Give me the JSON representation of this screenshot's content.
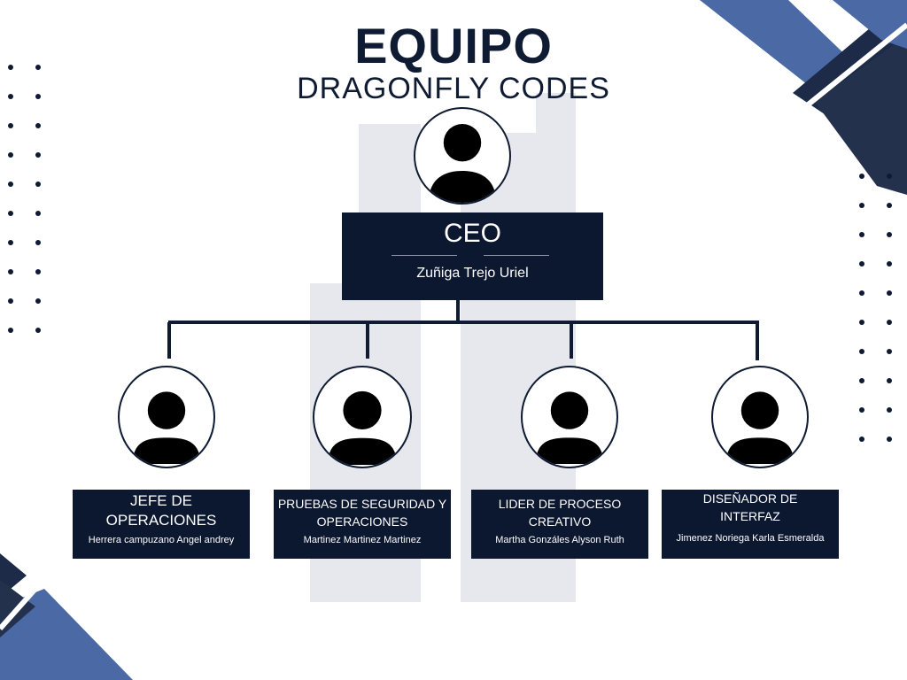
{
  "title": "EQUIPO",
  "subtitle": "DRAGONFLY CODES",
  "ceo": {
    "role": "CEO",
    "name": "Zuñiga Trejo Uriel"
  },
  "members": [
    {
      "role": "JEFE DE OPERACIONES",
      "name": "Herrera campuzano Angel andrey"
    },
    {
      "role": "PRUEBAS DE SEGURIDAD Y OPERACIONES",
      "name": "Martinez Martinez Martinez"
    },
    {
      "role": "LIDER DE PROCESO CREATIVO",
      "name": "Martha Gonzáles Alyson Ruth"
    },
    {
      "role": "DISEÑADOR DE INTERFAZ",
      "name": "Jimenez Noriega Karla Esmeralda"
    }
  ],
  "colors": {
    "navy": "#0c1730",
    "blue": "#4b6aa5",
    "watermark": "#e6e8ee"
  },
  "icons": [
    "person-icon"
  ]
}
